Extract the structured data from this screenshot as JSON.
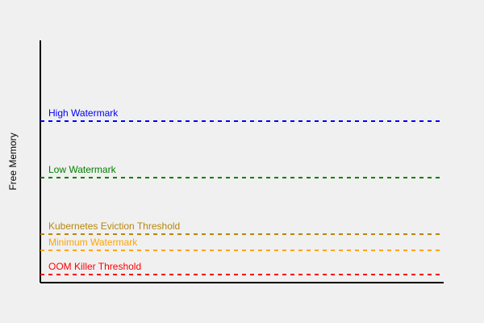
{
  "diagram": {
    "ylabel": "Free Memory",
    "axis_color": "#000000",
    "thresholds": [
      {
        "label": "High Watermark",
        "color": "#0000ff",
        "level": 200
      },
      {
        "label": "Low Watermark",
        "color": "#008000",
        "level": 130
      },
      {
        "label": "Kubernetes Eviction Threshold",
        "color": "#b8860b",
        "level": 60
      },
      {
        "label": "Minimum Watermark",
        "color": "#ffa500",
        "level": 40
      },
      {
        "label": "OOM Killer Threshold",
        "color": "#ff0000",
        "level": 10
      }
    ]
  }
}
